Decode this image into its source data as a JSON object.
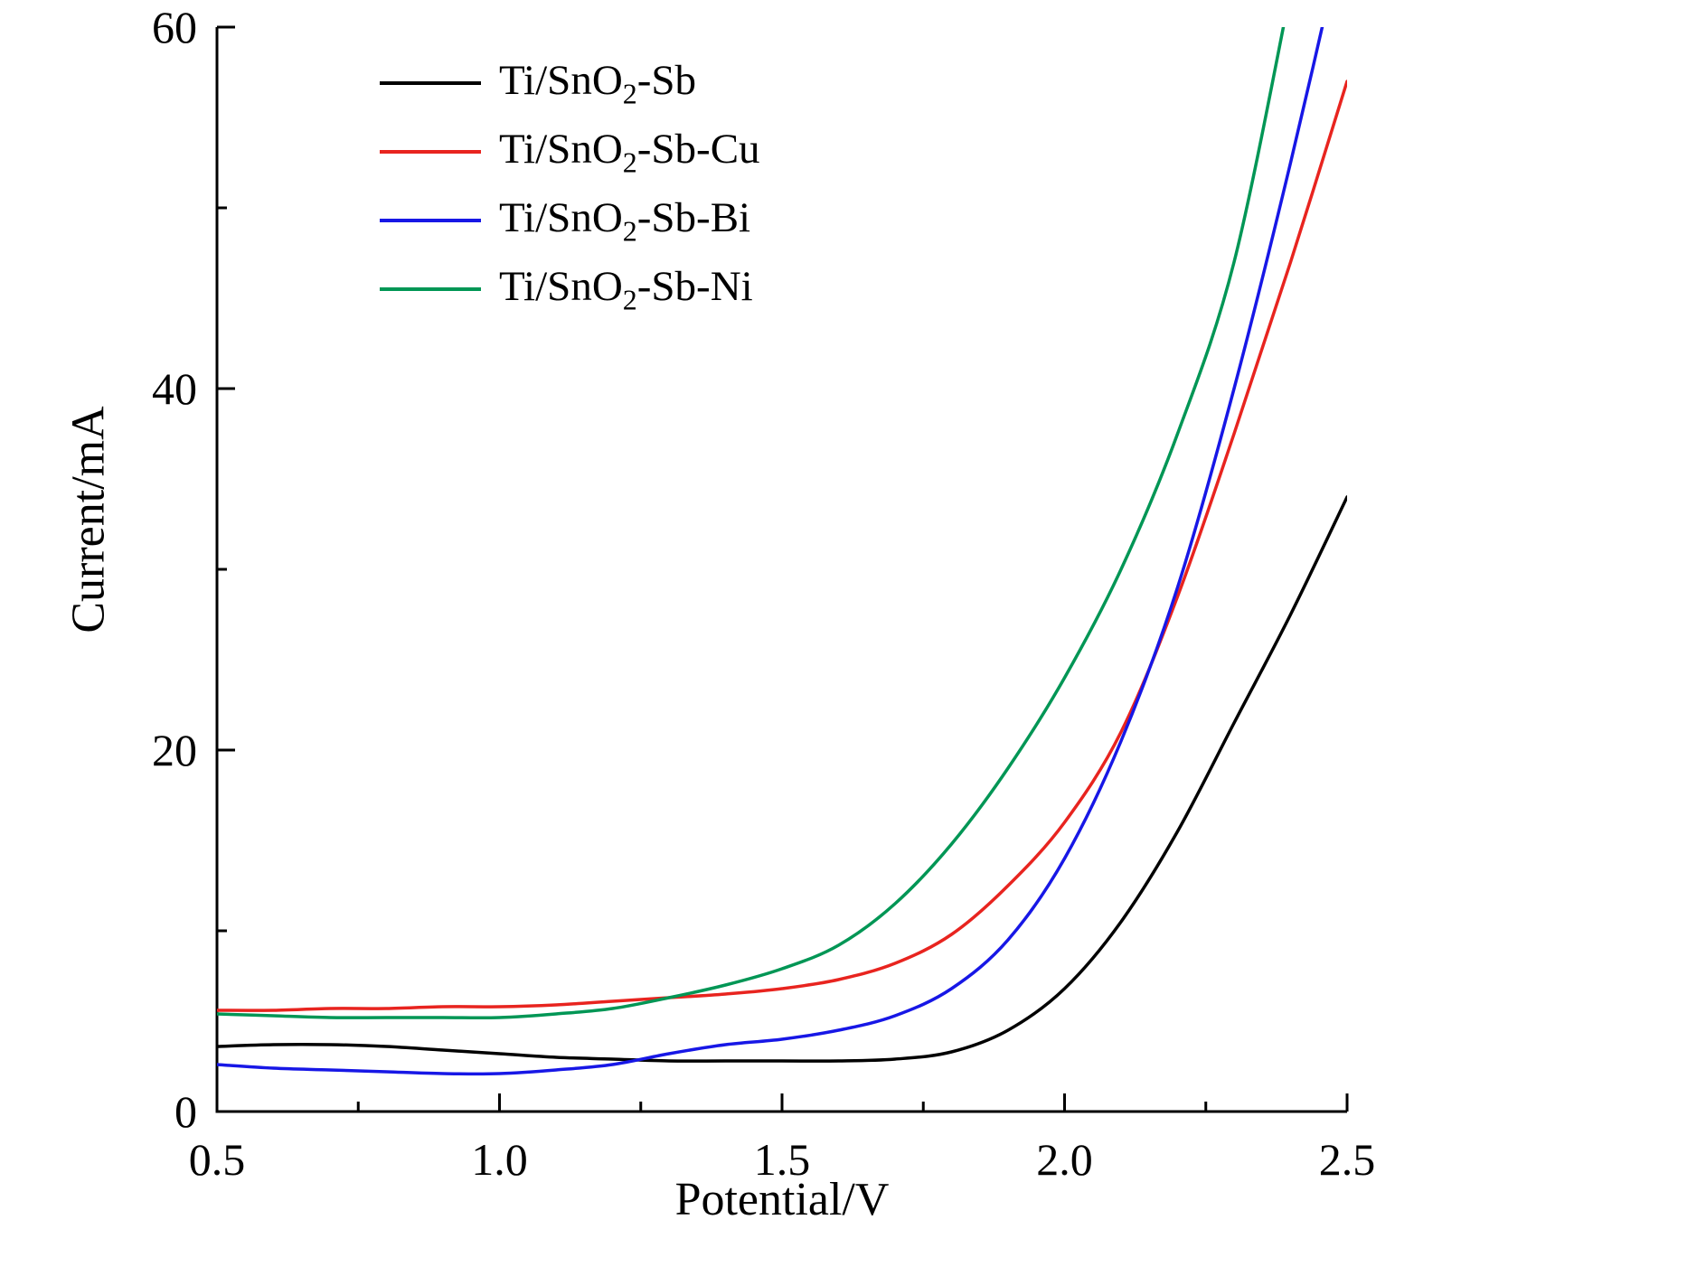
{
  "figure": {
    "background": "#ffffff",
    "axis_color": "#000000"
  },
  "chart_data": {
    "type": "line",
    "title": "",
    "xlabel": "Potential/V",
    "ylabel": "Current/mA",
    "xlim": [
      0.5,
      2.5
    ],
    "ylim": [
      0,
      60
    ],
    "grid": false,
    "legend_position": "top-left-inside",
    "x_major_ticks": [
      0.5,
      1.0,
      1.5,
      2.0,
      2.5
    ],
    "x_tick_labels": [
      "0.5",
      "1.0",
      "1.5",
      "2.0",
      "2.5"
    ],
    "x_minor_ticks": [
      0.75,
      1.25,
      1.75,
      2.25
    ],
    "y_major_ticks": [
      0,
      20,
      40,
      60
    ],
    "y_tick_labels": [
      "0",
      "20",
      "40",
      "60"
    ],
    "y_minor_ticks": [
      10,
      30,
      50
    ],
    "series": [
      {
        "name": "Ti/SnO2-Sb",
        "label": "Ti/SnO_{2}-Sb",
        "color": "#000000",
        "x": [
          0.5,
          0.6,
          0.7,
          0.8,
          0.9,
          1.0,
          1.1,
          1.2,
          1.3,
          1.4,
          1.5,
          1.6,
          1.7,
          1.8,
          1.9,
          2.0,
          2.1,
          2.2,
          2.3,
          2.4,
          2.5
        ],
        "values": [
          3.6,
          3.7,
          3.7,
          3.6,
          3.4,
          3.2,
          3.0,
          2.9,
          2.8,
          2.8,
          2.8,
          2.8,
          2.9,
          3.3,
          4.5,
          6.8,
          10.5,
          15.5,
          21.5,
          27.5,
          34.0
        ]
      },
      {
        "name": "Ti/SnO2-Sb-Cu",
        "label": "Ti/SnO_{2}-Sb-Cu",
        "color": "#e8241f",
        "x": [
          0.5,
          0.6,
          0.7,
          0.8,
          0.9,
          1.0,
          1.1,
          1.2,
          1.3,
          1.4,
          1.5,
          1.6,
          1.7,
          1.8,
          1.9,
          2.0,
          2.1,
          2.2,
          2.3,
          2.4,
          2.5
        ],
        "values": [
          5.6,
          5.6,
          5.7,
          5.7,
          5.8,
          5.8,
          5.9,
          6.1,
          6.3,
          6.5,
          6.8,
          7.3,
          8.2,
          9.8,
          12.5,
          16.0,
          21.0,
          28.5,
          37.5,
          47.0,
          57.0
        ]
      },
      {
        "name": "Ti/SnO2-Sb-Bi",
        "label": "Ti/SnO_{2}-Sb-Bi",
        "color": "#1717e6",
        "x": [
          0.5,
          0.6,
          0.7,
          0.8,
          0.9,
          1.0,
          1.1,
          1.2,
          1.3,
          1.4,
          1.5,
          1.6,
          1.7,
          1.8,
          1.9,
          2.0,
          2.1,
          2.2,
          2.3,
          2.4,
          2.5
        ],
        "values": [
          2.6,
          2.4,
          2.3,
          2.2,
          2.1,
          2.1,
          2.3,
          2.6,
          3.2,
          3.7,
          4.0,
          4.5,
          5.3,
          6.8,
          9.5,
          14.0,
          20.5,
          29.0,
          40.0,
          52.5,
          66.0
        ]
      },
      {
        "name": "Ti/SnO2-Sb-Ni",
        "label": "Ti/SnO_{2}-Sb-Ni",
        "color": "#009655",
        "x": [
          0.5,
          0.6,
          0.7,
          0.8,
          0.9,
          1.0,
          1.1,
          1.2,
          1.3,
          1.4,
          1.5,
          1.6,
          1.7,
          1.8,
          1.9,
          2.0,
          2.1,
          2.2,
          2.3,
          2.4
        ],
        "values": [
          5.4,
          5.3,
          5.2,
          5.2,
          5.2,
          5.2,
          5.4,
          5.7,
          6.3,
          7.0,
          7.9,
          9.2,
          11.5,
          14.8,
          19.0,
          24.0,
          30.0,
          37.5,
          47.0,
          62.0
        ]
      }
    ]
  }
}
